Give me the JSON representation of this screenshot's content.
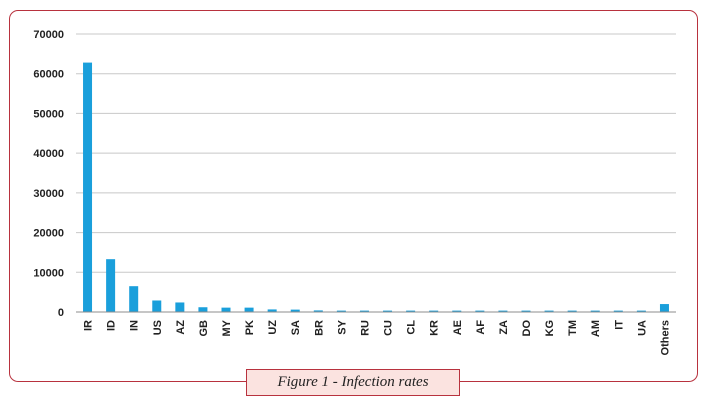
{
  "chart_data": {
    "type": "bar",
    "title": "",
    "xlabel": "",
    "ylabel": "",
    "ylim": [
      0,
      70000
    ],
    "yticks": [
      0,
      10000,
      20000,
      30000,
      40000,
      50000,
      60000,
      70000
    ],
    "grid": true,
    "legend": "none",
    "bar_color": "#1a9fdb",
    "categories": [
      "IR",
      "ID",
      "IN",
      "US",
      "AZ",
      "GB",
      "MY",
      "PK",
      "UZ",
      "SA",
      "BR",
      "SY",
      "RU",
      "CU",
      "CL",
      "KR",
      "AE",
      "AF",
      "ZA",
      "DO",
      "KG",
      "TM",
      "AM",
      "IT",
      "UA",
      "Others"
    ],
    "values": [
      62800,
      13300,
      6500,
      2900,
      2400,
      1200,
      1100,
      1100,
      650,
      600,
      400,
      350,
      350,
      350,
      350,
      350,
      350,
      350,
      350,
      350,
      350,
      350,
      350,
      350,
      350,
      2000
    ]
  },
  "caption": "Figure 1 - Infection rates",
  "colors": {
    "frame_border": "#b8323e",
    "caption_bg": "#fbe3e0",
    "grid": "#c8c8c8",
    "axis": "#8c8c8c"
  }
}
